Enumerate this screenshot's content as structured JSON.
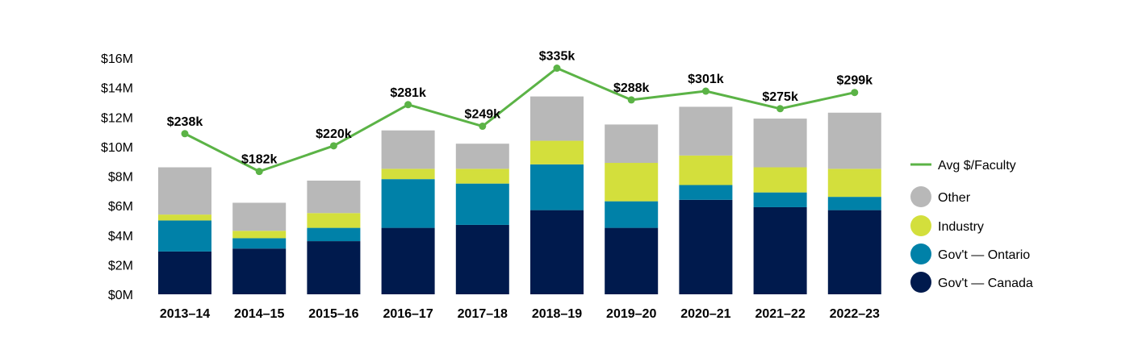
{
  "chart_data": {
    "type": "bar",
    "stacked": true,
    "categories": [
      "2013–14",
      "2014–15",
      "2015–16",
      "2016–17",
      "2017–18",
      "2018–19",
      "2019–20",
      "2020–21",
      "2021–22",
      "2022–23"
    ],
    "ylim": [
      0,
      16
    ],
    "yticks": [
      0,
      2,
      4,
      6,
      8,
      10,
      12,
      14,
      16
    ],
    "ytick_labels": [
      "$0M",
      "$2M",
      "$4M",
      "$6M",
      "$8M",
      "$10M",
      "$12M",
      "$14M",
      "$16M"
    ],
    "series": [
      {
        "name": "Gov't — Canada",
        "color": "#001a4d",
        "values": [
          2.9,
          3.1,
          3.6,
          4.5,
          4.7,
          5.7,
          4.5,
          6.4,
          5.9,
          5.7
        ]
      },
      {
        "name": "Gov't — Ontario",
        "color": "#0081a8",
        "values": [
          2.1,
          0.7,
          0.9,
          3.3,
          2.8,
          3.1,
          1.8,
          1.0,
          1.0,
          0.9
        ]
      },
      {
        "name": "Industry",
        "color": "#d3df3c",
        "values": [
          0.4,
          0.5,
          1.0,
          0.7,
          1.0,
          1.6,
          2.6,
          2.0,
          1.7,
          1.9
        ]
      },
      {
        "name": "Other",
        "color": "#b8b8b8",
        "values": [
          3.2,
          1.9,
          2.2,
          2.6,
          1.7,
          3.0,
          2.6,
          3.3,
          3.3,
          3.8
        ]
      }
    ],
    "line": {
      "name": "Avg $/Faculty",
      "color": "#5bb346",
      "values": [
        238,
        182,
        220,
        281,
        249,
        335,
        288,
        301,
        275,
        299
      ],
      "labels": [
        "$238k",
        "$182k",
        "$220k",
        "$281k",
        "$249k",
        "$335k",
        "$288k",
        "$301k",
        "$275k",
        "$299k"
      ],
      "scale_max": 350
    },
    "legend": {
      "placement": "right",
      "items": [
        {
          "label": "Avg $/Faculty",
          "kind": "line",
          "color": "#5bb346"
        },
        {
          "label": "Other",
          "kind": "dot",
          "color": "#b8b8b8"
        },
        {
          "label": "Industry",
          "kind": "dot",
          "color": "#d3df3c"
        },
        {
          "label": "Gov't — Ontario",
          "kind": "dot",
          "color": "#0081a8"
        },
        {
          "label": "Gov't — Canada",
          "kind": "dot",
          "color": "#001a4d"
        }
      ]
    }
  }
}
